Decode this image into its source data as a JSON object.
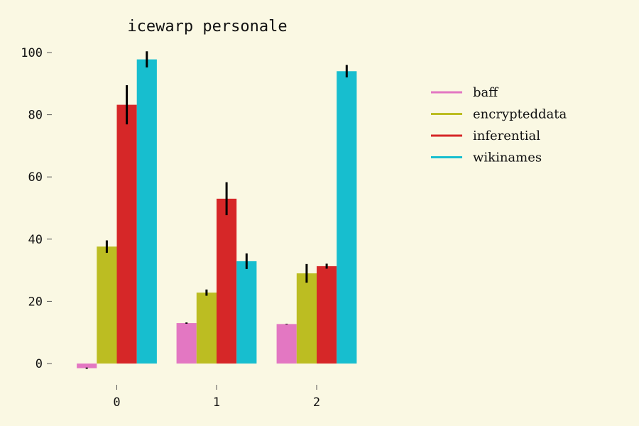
{
  "chart_data": {
    "type": "bar",
    "title": "icewarp personale",
    "xlabel": "",
    "ylabel": "",
    "categories": [
      "0",
      "1",
      "2"
    ],
    "ylim": [
      -2,
      100
    ],
    "yticks": [
      0,
      20,
      40,
      60,
      80,
      100
    ],
    "grid": false,
    "legend_position": "right",
    "series": [
      {
        "name": "baff",
        "color": "#e377c2",
        "values": [
          -1.5,
          13.0,
          12.7
        ],
        "errors": [
          0.2,
          0.2,
          0.1
        ]
      },
      {
        "name": "encrypteddata",
        "color": "#bcbd22",
        "values": [
          37.6,
          22.8,
          29.0
        ],
        "errors": [
          2.0,
          1.0,
          3.0
        ]
      },
      {
        "name": "inferential",
        "color": "#d62728",
        "values": [
          83.2,
          53.0,
          31.3
        ],
        "errors": [
          6.3,
          5.3,
          0.8
        ]
      },
      {
        "name": "wikinames",
        "color": "#17becf",
        "values": [
          97.8,
          32.9,
          94.0
        ],
        "errors": [
          2.6,
          2.5,
          2.0
        ]
      }
    ]
  }
}
